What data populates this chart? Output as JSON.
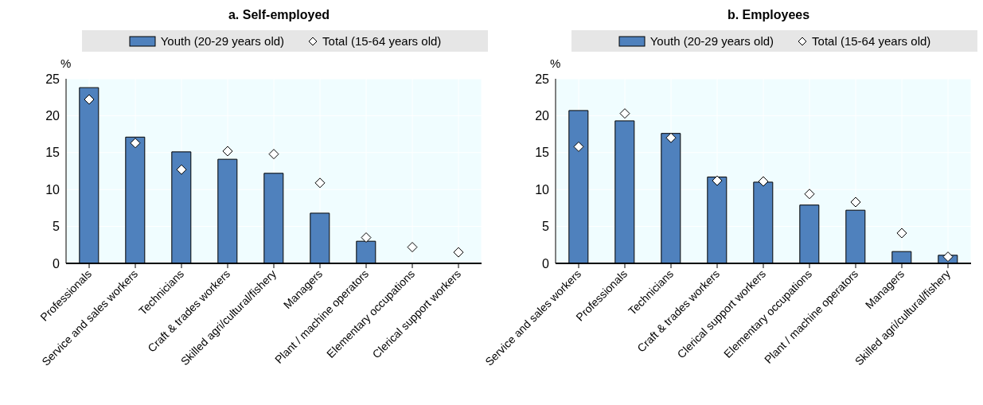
{
  "chart_data": [
    {
      "type": "bar",
      "title": "a. Self-employed",
      "ylabel": "%",
      "categories": [
        "Professionals",
        "Service and sales workers",
        "Technicians",
        "Craft & trades workers",
        "Skilled agri/cultural/fishery",
        "Managers",
        "Plant / machine operators",
        "Elementary occupations",
        "Clerical support workers"
      ],
      "series": [
        {
          "name": "Youth (20-29 years old)",
          "color": "#4f81bd",
          "values": [
            23.8,
            17.1,
            15.1,
            14.1,
            12.2,
            6.8,
            3.0,
            null,
            null
          ]
        },
        {
          "name": "Total (15-64 years old)",
          "type": "scatter",
          "marker": "diamond",
          "color": "#ffffff",
          "values": [
            22.2,
            16.3,
            12.7,
            15.2,
            14.8,
            10.9,
            3.5,
            2.2,
            1.5
          ]
        }
      ],
      "ylim": [
        0,
        25
      ],
      "yticks": [
        0,
        5,
        10,
        15,
        20,
        25
      ],
      "grid": true,
      "legend": "top"
    },
    {
      "type": "bar",
      "title": "b. Employees",
      "ylabel": "%",
      "categories": [
        "Service and sales workers",
        "Professionals",
        "Technicians",
        "Craft & trades workers",
        "Clerical support workers",
        "Elementary occupations",
        "Plant / machine operators",
        "Managers",
        "Skilled agri/cultural/fishery"
      ],
      "series": [
        {
          "name": "Youth (20-29 years old)",
          "color": "#4f81bd",
          "values": [
            20.7,
            19.3,
            17.6,
            11.7,
            11.0,
            7.9,
            7.2,
            1.6,
            1.1
          ]
        },
        {
          "name": "Total (15-64 years old)",
          "type": "scatter",
          "marker": "diamond",
          "color": "#ffffff",
          "values": [
            15.8,
            20.3,
            17.0,
            11.2,
            11.1,
            9.4,
            8.3,
            4.1,
            0.9
          ]
        }
      ],
      "ylim": [
        0,
        25
      ],
      "yticks": [
        0,
        5,
        10,
        15,
        20,
        25
      ],
      "grid": true,
      "legend": "top"
    }
  ]
}
